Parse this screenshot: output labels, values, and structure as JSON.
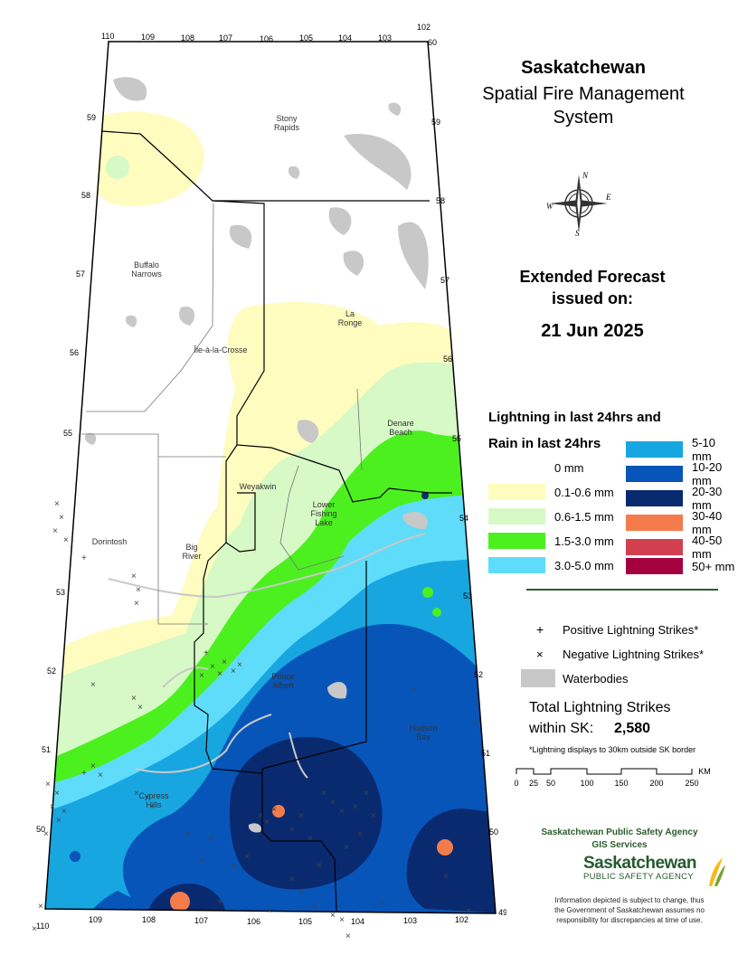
{
  "title": {
    "line1": "Saskatchewan",
    "line2": "Spatial Fire Management",
    "line3": "System"
  },
  "forecast": {
    "line1": "Extended Forecast",
    "line2": "issued on:",
    "date": "21 Jun 2025"
  },
  "compass": {
    "n": "N",
    "s": "S",
    "e": "E",
    "w": "W"
  },
  "legend": {
    "heading1": "Lightning in last 24hrs and",
    "heading2": "Rain in last 24hrs",
    "rain_classes": [
      {
        "label": "0 mm",
        "color": "#ffffff"
      },
      {
        "label": "0.1-0.6 mm",
        "color": "#fefcbf"
      },
      {
        "label": "0.6-1.5 mm",
        "color": "#d6f9c6"
      },
      {
        "label": "1.5-3.0 mm",
        "color": "#4cf01f"
      },
      {
        "label": "3.0-5.0 mm",
        "color": "#5fdcfa"
      },
      {
        "label": "5-10 mm",
        "color": "#17a6e0"
      },
      {
        "label": "10-20 mm",
        "color": "#0755b8"
      },
      {
        "label": "20-30 mm",
        "color": "#0a2a70"
      },
      {
        "label": "30-40 mm",
        "color": "#f47c4b"
      },
      {
        "label": "40-50 mm",
        "color": "#d2404f"
      },
      {
        "label": "50+ mm",
        "color": "#a4003f"
      }
    ],
    "positive_symbol": "+",
    "positive_label": "Positive Lightning Strikes*",
    "negative_symbol": "×",
    "negative_label": "Negative Lightning Strikes*",
    "waterbody_label": "Waterbodies",
    "waterbody_color": "#c8c8c8"
  },
  "totals": {
    "label_line1": "Total Lightning Strikes",
    "label_line2": "within SK:",
    "value": "2,580",
    "note": "*Lightning displays to 30km outside SK border"
  },
  "scalebar": {
    "ticks": [
      "0",
      "25",
      "50",
      "100",
      "150",
      "200",
      "250"
    ],
    "unit": "KM"
  },
  "agency": {
    "line1": "Saskatchewan Public Safety Agency",
    "line2": "GIS  Services",
    "logo_word": "Saskatchewan",
    "logo_sub": "PUBLIC SAFETY AGENCY",
    "disclaimer1": "Information depicted is subject to change, thus",
    "disclaimer2": "the Government of Saskatchewan assumes no",
    "disclaimer3": "responsibility for discrepancies at time of use."
  },
  "map": {
    "lon_labels_top": [
      "110",
      "109",
      "108",
      "107",
      "106",
      "105",
      "104",
      "103",
      "102"
    ],
    "lon_labels_bottom": [
      "110",
      "109",
      "108",
      "107",
      "106",
      "105",
      "104",
      "103",
      "102"
    ],
    "lat_labels": [
      "60",
      "59",
      "58",
      "57",
      "56",
      "55",
      "54",
      "53",
      "52",
      "51",
      "50",
      "49"
    ],
    "places": [
      "Stony\nRapids",
      "Buffalo\nNarrows",
      "La\nRonge",
      "Île-à-la-Crosse",
      "Denare\nBeach",
      "Weyakwin",
      "Lower\nFishing\nLake",
      "Dorintosh",
      "Big\nRiver",
      "Prince\nAlbert",
      "Hudson\nBay",
      "Cypress\nHills"
    ]
  }
}
